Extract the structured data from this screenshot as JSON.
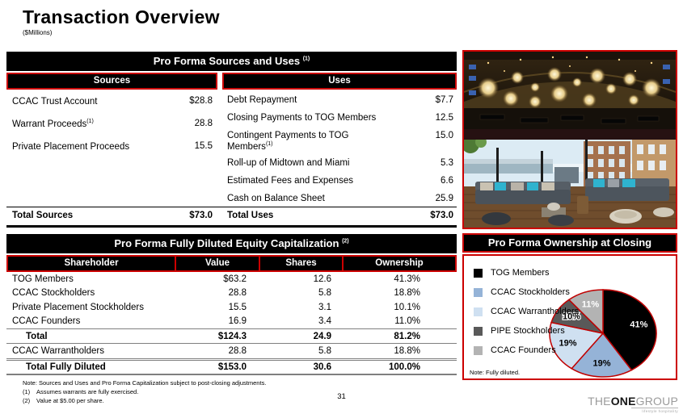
{
  "accent": {
    "red": "#cc0000",
    "pie_border": "#c00000",
    "rule_gray": "#7f7f7f",
    "black": "#000000"
  },
  "title": {
    "text": "Transaction Overview",
    "subtitle": "($Millions)"
  },
  "sources_uses": {
    "title": "Pro Forma Sources and Uses",
    "title_sup": "(1)",
    "sources": {
      "header": "Sources",
      "rows": [
        {
          "label": "CCAC Trust Account",
          "sup": "",
          "value": "$28.8"
        },
        {
          "label": "Warrant Proceeds",
          "sup": "(1)",
          "value": "28.8"
        },
        {
          "label": "Private Placement Proceeds",
          "sup": "",
          "value": "15.5"
        }
      ],
      "total_label": "Total Sources",
      "total_value": "$73.0"
    },
    "uses": {
      "header": "Uses",
      "rows": [
        {
          "label": "Debt Repayment",
          "sup": "",
          "value": "$7.7"
        },
        {
          "label": "Closing Payments to TOG Members",
          "sup": "",
          "value": "12.5"
        },
        {
          "label": "Contingent Payments to TOG Members",
          "sup": "(1)",
          "value": "15.0"
        },
        {
          "label": "Roll-up of Midtown and Miami",
          "sup": "",
          "value": "5.3"
        },
        {
          "label": "Estimated Fees and Expenses",
          "sup": "",
          "value": "6.6"
        },
        {
          "label": "Cash on Balance Sheet",
          "sup": "",
          "value": "25.9"
        }
      ],
      "total_label": "Total Uses",
      "total_value": "$73.0"
    }
  },
  "equity_cap": {
    "title": "Pro Forma Fully Diluted Equity Capitalization",
    "title_sup": "(2)",
    "columns": [
      "Shareholder",
      "Value",
      "Shares",
      "Ownership"
    ],
    "rows": [
      {
        "shareholder": "TOG Members",
        "value": "$63.2",
        "shares": "12.6",
        "ownership": "41.3%",
        "bold": false,
        "rule": ""
      },
      {
        "shareholder": "CCAC Stockholders",
        "value": "28.8",
        "shares": "5.8",
        "ownership": "18.8%",
        "bold": false,
        "rule": ""
      },
      {
        "shareholder": "Private Placement Stockholders",
        "value": "15.5",
        "shares": "3.1",
        "ownership": "10.1%",
        "bold": false,
        "rule": ""
      },
      {
        "shareholder": "CCAC Founders",
        "value": "16.9",
        "shares": "3.4",
        "ownership": "11.0%",
        "bold": false,
        "rule": ""
      },
      {
        "shareholder": "Total",
        "value": "$124.3",
        "shares": "24.9",
        "ownership": "81.2%",
        "bold": true,
        "rule": "total"
      },
      {
        "shareholder": "CCAC Warrantholders",
        "value": "28.8",
        "shares": "5.8",
        "ownership": "18.8%",
        "bold": false,
        "rule": ""
      },
      {
        "shareholder": "Total Fully Diluted",
        "value": "$153.0",
        "shares": "30.6",
        "ownership": "100.0%",
        "bold": true,
        "rule": "grand"
      }
    ]
  },
  "ownership_panel": {
    "title": "Pro Forma Ownership at Closing",
    "note": "Note: Fully diluted."
  },
  "chart_data": {
    "type": "pie",
    "title": "Pro Forma Ownership at Closing",
    "labels": [
      "TOG Members",
      "CCAC Stockholders",
      "CCAC Warrantholders",
      "PIPE Stockholders",
      "CCAC Founders"
    ],
    "values": [
      41,
      19,
      19,
      10,
      11
    ],
    "slice_labels": [
      "41%",
      "19%",
      "19%",
      "10%",
      "11%"
    ],
    "colors": [
      "#000000",
      "#95b3d7",
      "#cfe0f1",
      "#595959",
      "#b3b3b3"
    ],
    "label_colors": [
      "#ffffff",
      "#000000",
      "#000000",
      "#000000",
      "#ffffff"
    ],
    "label_stroke": [
      "",
      "",
      "",
      "#ffffff",
      ""
    ],
    "border_color": "#c00000",
    "legend_position": "left",
    "note": "Note: Fully diluted."
  },
  "photos": [
    {
      "name": "venue-interior-photo",
      "alt": "Dark restaurant interior with globe chandeliers and balcony"
    },
    {
      "name": "rooftop-terrace-photo",
      "alt": "Rooftop lounge terrace with gray sofas and teal pillows"
    }
  ],
  "footnotes": {
    "note": "Note: Sources and Uses and Pro Forma Capitalization subject to post-closing adjustments.",
    "items": [
      {
        "num": "(1)",
        "text": "Assumes warrants are fully exercised."
      },
      {
        "num": "(2)",
        "text": "Value at $5.00 per share."
      }
    ]
  },
  "page_number": "31",
  "logo": {
    "the": "THE",
    "one": "ONE",
    "group": "GROUP",
    "tagline": "lifestyle hospitality"
  }
}
